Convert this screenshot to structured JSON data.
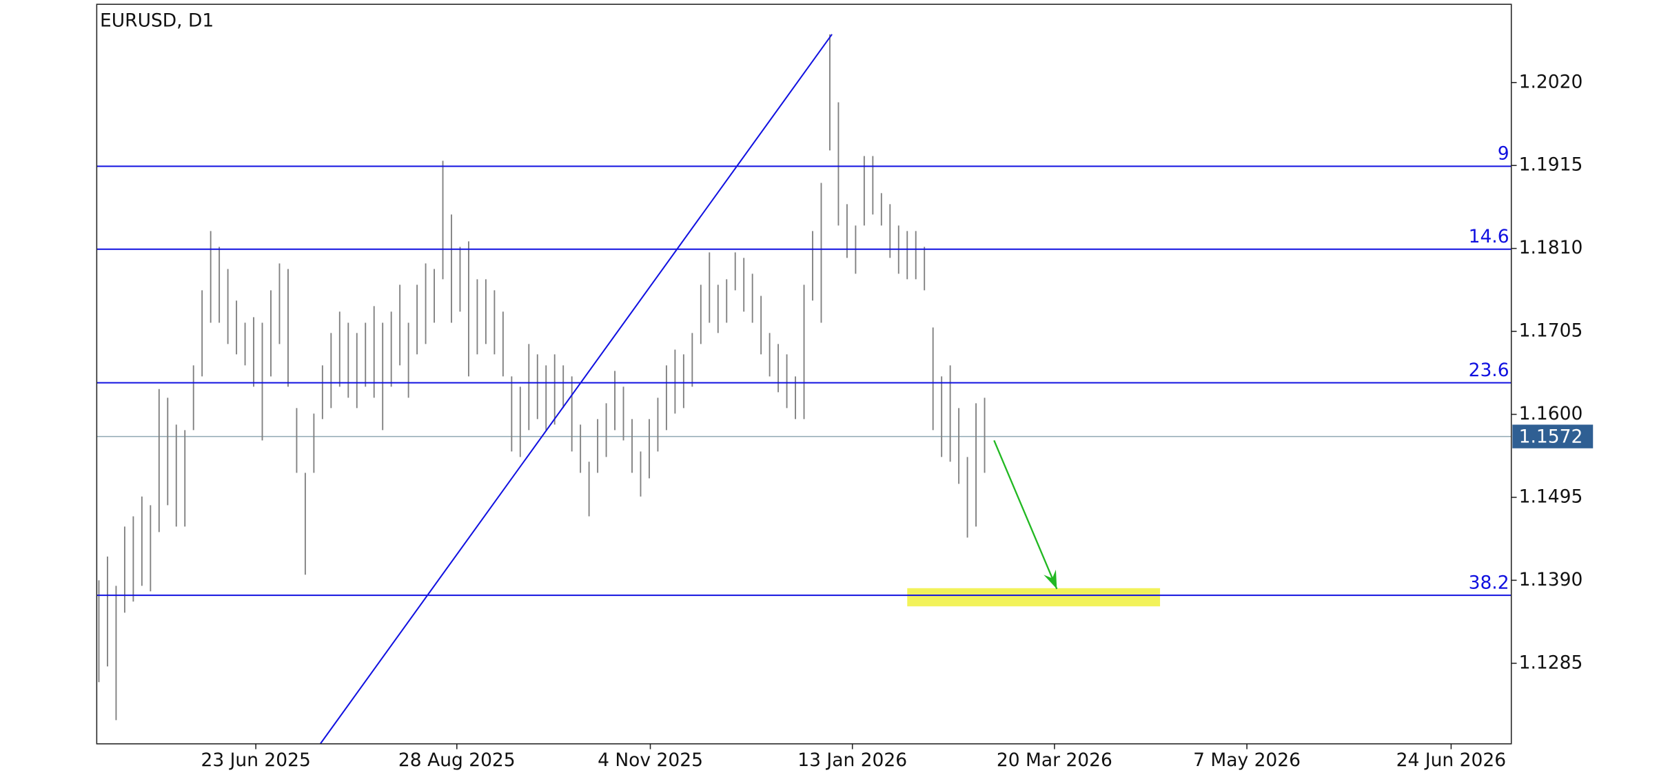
{
  "chart_data": {
    "type": "ohlc",
    "title": "EURUSD, D1",
    "color": "#808080",
    "high": [
      1.139,
      1.142,
      1.1383,
      1.1458,
      1.1471,
      1.1496,
      1.1485,
      1.1632,
      1.1621,
      1.1587,
      1.158,
      1.1662,
      1.1757,
      1.1832,
      1.1812,
      1.1784,
      1.1744,
      1.1716,
      1.1723,
      1.1716,
      1.1757,
      1.1791,
      1.1784,
      1.1608,
      1.1526,
      1.1601,
      1.1662,
      1.1703,
      1.173,
      1.1716,
      1.1703,
      1.1716,
      1.1737,
      1.1716,
      1.173,
      1.1764,
      1.1716,
      1.1764,
      1.1791,
      1.1784,
      1.1921,
      1.1853,
      1.1812,
      1.1819,
      1.1771,
      1.1771,
      1.1757,
      1.173,
      1.1648,
      1.1635,
      1.1689,
      1.1676,
      1.1662,
      1.1676,
      1.1662,
      1.1648,
      1.1587,
      1.154,
      1.1594,
      1.1614,
      1.1655,
      1.1635,
      1.1594,
      1.1553,
      1.1594,
      1.1621,
      1.1662,
      1.1682,
      1.1676,
      1.1703,
      1.1764,
      1.1805,
      1.1764,
      1.1771,
      1.1805,
      1.1798,
      1.1778,
      1.175,
      1.1703,
      1.1689,
      1.1676,
      1.1648,
      1.1764,
      1.1832,
      1.1893,
      1.2081,
      1.1995,
      1.1866,
      1.1839,
      1.1927,
      1.1927,
      1.188,
      1.1866,
      1.1839,
      1.1832,
      1.1832,
      1.1812,
      1.171,
      1.1648,
      1.1662,
      1.1608,
      1.1546,
      1.1614,
      1.1621
    ],
    "low": [
      1.1261,
      1.1281,
      1.1213,
      1.1349,
      1.1363,
      1.1383,
      1.1376,
      1.1451,
      1.1485,
      1.1458,
      1.1458,
      1.158,
      1.1648,
      1.1716,
      1.1716,
      1.1689,
      1.1676,
      1.1662,
      1.1635,
      1.1567,
      1.1648,
      1.1689,
      1.1635,
      1.1526,
      1.1397,
      1.1526,
      1.1594,
      1.1608,
      1.1635,
      1.1621,
      1.1608,
      1.1635,
      1.1621,
      1.158,
      1.1635,
      1.1662,
      1.1621,
      1.1676,
      1.1689,
      1.1716,
      1.1771,
      1.1716,
      1.173,
      1.1648,
      1.1676,
      1.1689,
      1.1676,
      1.1648,
      1.1553,
      1.1546,
      1.158,
      1.1594,
      1.158,
      1.1587,
      1.1608,
      1.1553,
      1.1526,
      1.1471,
      1.1526,
      1.1546,
      1.158,
      1.1567,
      1.1526,
      1.1496,
      1.1519,
      1.1553,
      1.158,
      1.1601,
      1.1608,
      1.1635,
      1.1689,
      1.1716,
      1.1703,
      1.1716,
      1.1757,
      1.173,
      1.1716,
      1.1676,
      1.1648,
      1.1628,
      1.1608,
      1.1594,
      1.1594,
      1.1744,
      1.1716,
      1.1934,
      1.1839,
      1.1798,
      1.1778,
      1.1839,
      1.1853,
      1.1839,
      1.1798,
      1.1778,
      1.1771,
      1.1771,
      1.1757,
      1.158,
      1.1546,
      1.154,
      1.1512,
      1.1444,
      1.1458,
      1.1526
    ],
    "xlim": [
      -0.25,
      164.25
    ],
    "xticks": [
      {
        "value": 18.25,
        "label": "23 Jun 2025"
      },
      {
        "value": 41.625,
        "label": "28 Aug 2025"
      },
      {
        "value": 64.125,
        "label": "4 Nov 2025"
      },
      {
        "value": 87.625,
        "label": "13 Jan 2026"
      },
      {
        "value": 111.125,
        "label": "20 Mar 2026"
      },
      {
        "value": 133.5,
        "label": "7 May 2026"
      },
      {
        "value": 157.25,
        "label": "24 Jun 2026"
      }
    ],
    "ylim": [
      1.1183,
      1.2119
    ],
    "yticks": [
      {
        "value": 1.202,
        "label": "1.2020"
      },
      1.1915,
      {
        "value": 1.181,
        "label": "1.1810"
      },
      1.1705,
      {
        "value": 1.16,
        "label": "1.1600"
      },
      1.1495,
      {
        "value": 1.139,
        "label": "1.1390"
      },
      1.1285
    ],
    "levels": [
      {
        "label": "9",
        "value": 1.1914
      },
      {
        "label": "14.6",
        "value": 1.1809
      },
      {
        "label": "23.6",
        "value": 1.164
      },
      {
        "label": "38.2",
        "value": 1.1371
      }
    ],
    "level_color": "#1010e0",
    "last_price": 1.1572,
    "last_price_color": "#2f5f93",
    "trendline": {
      "x": [
        25.75,
        85.25
      ],
      "y": [
        1.1183,
        1.2081
      ],
      "color": "#1010e0"
    },
    "arrow": {
      "x": [
        104.1,
        111.4
      ],
      "y": [
        1.1567,
        1.1379
      ],
      "color": "#22b822"
    },
    "zone": {
      "x": [
        94,
        123.4
      ],
      "y": [
        1.1357,
        1.138
      ],
      "color": "#f2f25a"
    }
  }
}
